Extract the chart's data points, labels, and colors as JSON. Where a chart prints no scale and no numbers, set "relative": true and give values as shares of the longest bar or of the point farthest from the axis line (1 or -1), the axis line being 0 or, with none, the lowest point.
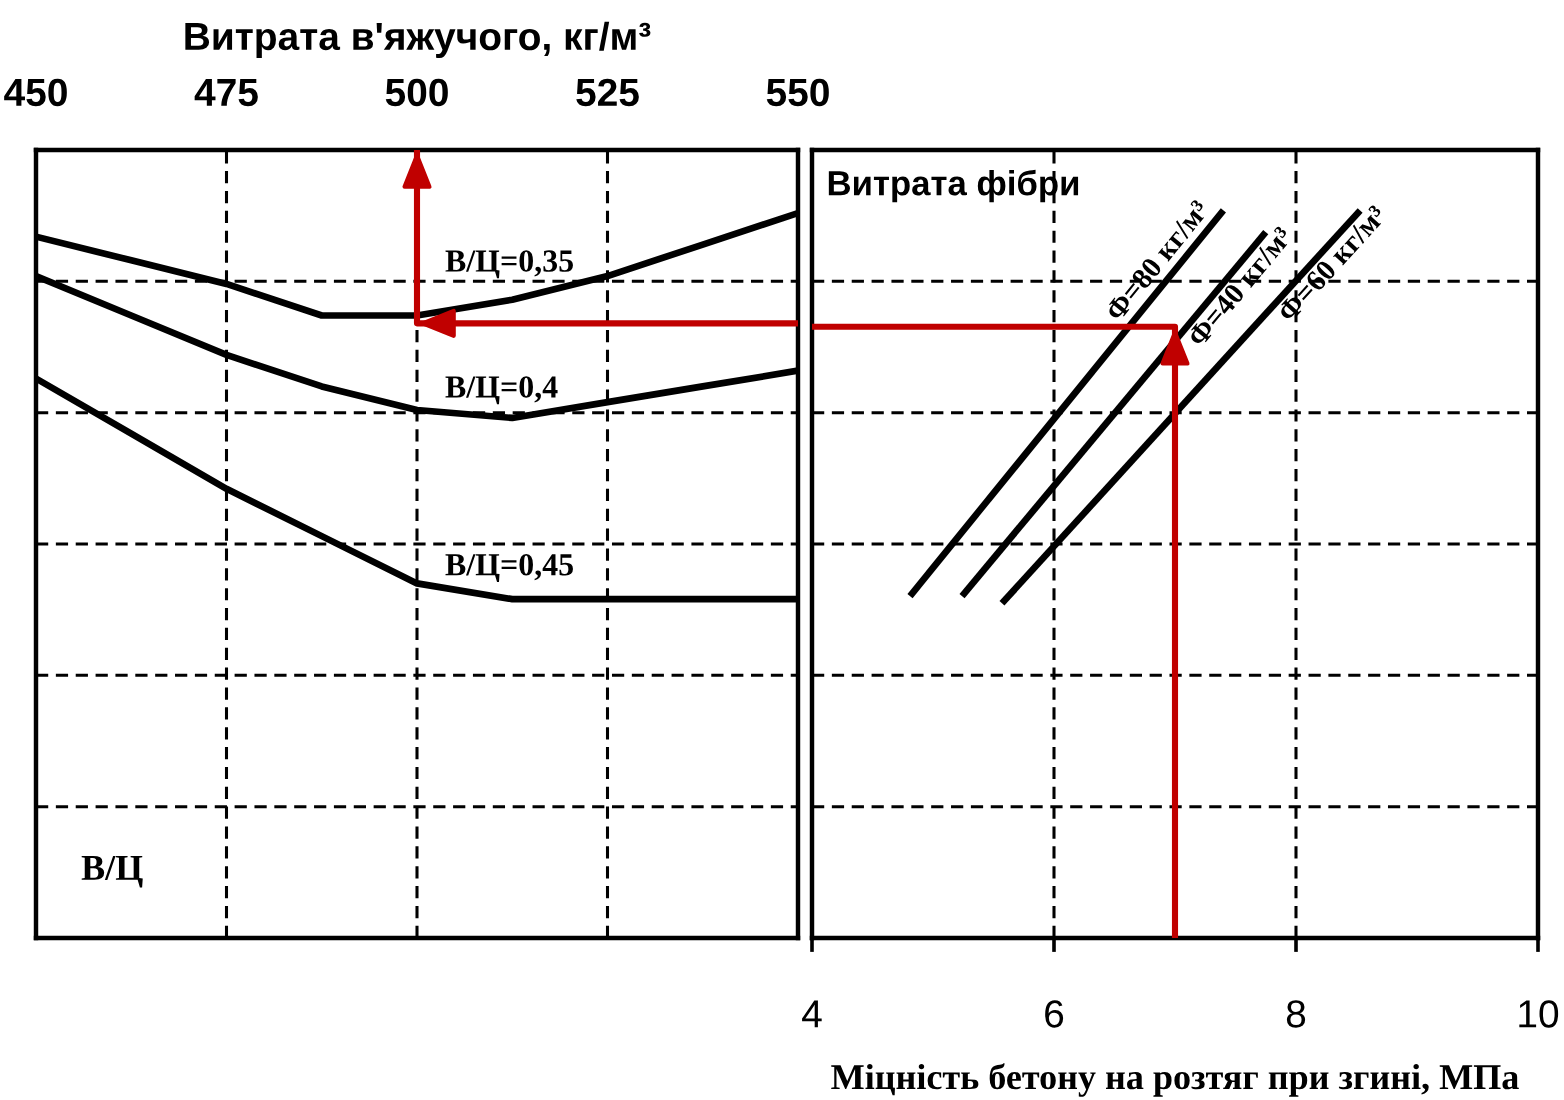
{
  "chart_data": [
    {
      "type": "line",
      "relative": true,
      "xlabel": "Витрата в'яжучого, кг/м³",
      "xlim": [
        450,
        550
      ],
      "xticks": [
        450,
        475,
        500,
        525,
        550
      ],
      "ylabel": "В/Ц",
      "grid": true,
      "series": [
        {
          "name": "В/Ц=0,35",
          "color": "#000000",
          "x": [
            450,
            462.5,
            475,
            487.5,
            500,
            512.5,
            525,
            537.5,
            550
          ],
          "values": [
            0.89,
            0.86,
            0.83,
            0.79,
            0.79,
            0.81,
            0.84,
            0.88,
            0.92
          ]
        },
        {
          "name": "В/Ц=0,4",
          "color": "#000000",
          "x": [
            450,
            462.5,
            475,
            487.5,
            500,
            512.5,
            525,
            537.5,
            550
          ],
          "values": [
            0.84,
            0.79,
            0.74,
            0.7,
            0.67,
            0.66,
            0.68,
            0.7,
            0.72
          ]
        },
        {
          "name": "В/Ц=0,45",
          "color": "#000000",
          "x": [
            450,
            462.5,
            475,
            487.5,
            500,
            512.5,
            525,
            537.5,
            550
          ],
          "values": [
            0.71,
            0.64,
            0.57,
            0.51,
            0.45,
            0.43,
            0.43,
            0.43,
            0.43
          ]
        },
        {
          "color": "#c00000",
          "x": [
            550,
            500,
            500
          ],
          "values": [
            0.78,
            0.78,
            1
          ]
        }
      ]
    },
    {
      "type": "line",
      "relative": true,
      "title": "Витрата фібри",
      "xlabel": "Міцність бетону на розтяг при згині, МПа",
      "xlim": [
        4,
        10
      ],
      "xticks": [
        4,
        6,
        8,
        10
      ],
      "grid": true,
      "series": [
        {
          "name": "Ф=80 кг/м³",
          "color": "#000000",
          "x": [
            4.81,
            7.4
          ],
          "values": [
            0.47,
            1
          ]
        },
        {
          "name": "Ф=40 кг/м³",
          "color": "#000000",
          "x": [
            5.24,
            7.75
          ],
          "values": [
            0.47,
            0.97
          ]
        },
        {
          "name": "Ф=60 кг/м³",
          "color": "#000000",
          "x": [
            5.57,
            8.53
          ],
          "values": [
            0.46,
            1
          ]
        },
        {
          "color": "#c00000",
          "x": [
            7,
            7,
            4
          ],
          "values": [
            0,
            0.84,
            0.84
          ]
        }
      ]
    }
  ]
}
